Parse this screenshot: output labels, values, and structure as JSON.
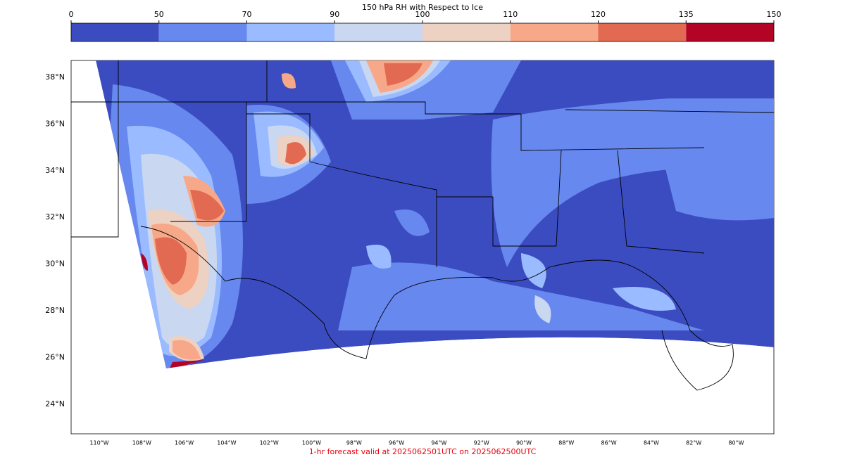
{
  "colorbar": {
    "title": "150 hPa RH with Respect to Ice",
    "ticks": [
      0,
      50,
      70,
      90,
      100,
      110,
      120,
      135,
      150
    ],
    "colors": [
      "#3b4cc0",
      "#6788ee",
      "#9abbff",
      "#c9d7f0",
      "#edd1c2",
      "#f7a889",
      "#e26952",
      "#b40426"
    ]
  },
  "map": {
    "lat_labels": [
      "38°N",
      "36°N",
      "34°N",
      "32°N",
      "30°N",
      "28°N",
      "26°N",
      "24°N"
    ],
    "lon_labels": [
      "110°W",
      "108°W",
      "106°W",
      "104°W",
      "102°W",
      "100°W",
      "98°W",
      "96°W",
      "94°W",
      "92°W",
      "90°W",
      "88°W",
      "86°W",
      "84°W",
      "82°W",
      "80°W"
    ]
  },
  "footer": "1-hr forecast valid at 2025062501UTC on 2025062500UTC"
}
